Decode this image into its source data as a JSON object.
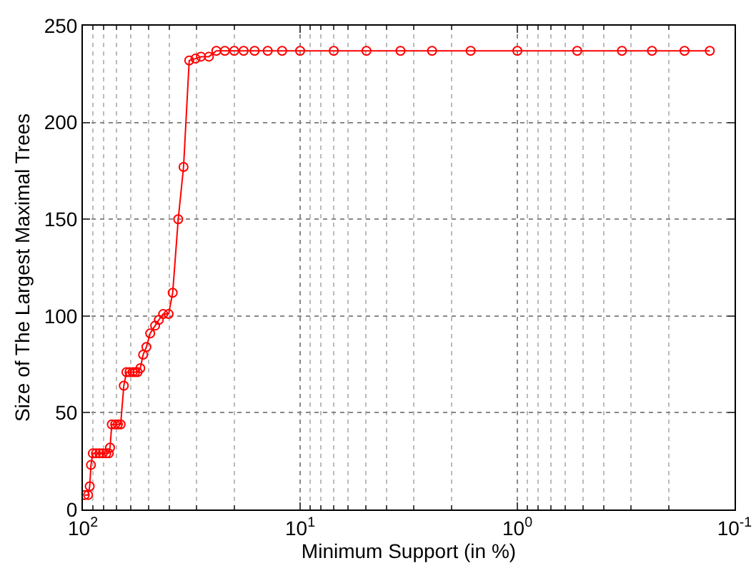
{
  "chart_data": {
    "type": "line",
    "xlabel": "Minimum Support (in %)",
    "ylabel": "Size of The Largest Maximal Trees",
    "x": [
      98,
      94.6,
      93,
      91.8,
      90,
      87,
      84,
      81,
      78,
      76,
      75,
      73.6,
      71,
      69,
      67,
      64.8,
      63,
      61,
      59,
      57.5,
      56,
      54.4,
      52.8,
      51,
      49,
      46.5,
      44.7,
      42.7,
      40.3,
      38.6,
      36.4,
      34.4,
      32.4,
      30.3,
      28.6,
      26.3,
      24.3,
      22.2,
      20.1,
      18.2,
      16.2,
      14.1,
      12.1,
      10,
      7,
      4.95,
      3.45,
      2.47,
      1.64,
      1,
      0.53,
      0.33,
      0.24,
      0.17,
      0.13
    ],
    "series": [
      {
        "color": "#ff0000",
        "values": [
          7.5,
          7.5,
          12,
          23,
          29,
          29,
          29,
          29,
          29,
          29,
          32,
          44,
          44,
          44,
          44,
          64,
          71,
          71,
          71,
          71,
          71,
          73,
          80,
          84,
          91,
          95,
          98,
          101,
          101,
          112,
          150,
          177,
          232,
          233,
          234,
          234,
          237,
          237,
          237,
          237,
          237,
          237,
          237,
          237,
          237,
          237,
          237,
          237,
          237,
          237,
          237,
          237,
          237,
          237,
          237
        ]
      }
    ],
    "xlim": [
      100,
      0.1
    ],
    "xticks": [
      {
        "value": 100,
        "label": "10$^{2}$"
      },
      {
        "value": 10,
        "label": "10$^{1}$"
      },
      {
        "value": 1,
        "label": "10$^{0}$"
      },
      {
        "value": 0.1,
        "label": "10$^{-1}$"
      }
    ],
    "ylim": [
      0,
      250
    ],
    "yticks": [
      0,
      50,
      100,
      150,
      200,
      250
    ],
    "log": "x",
    "grid": true,
    "marker": "circle",
    "line_style": "solid"
  }
}
